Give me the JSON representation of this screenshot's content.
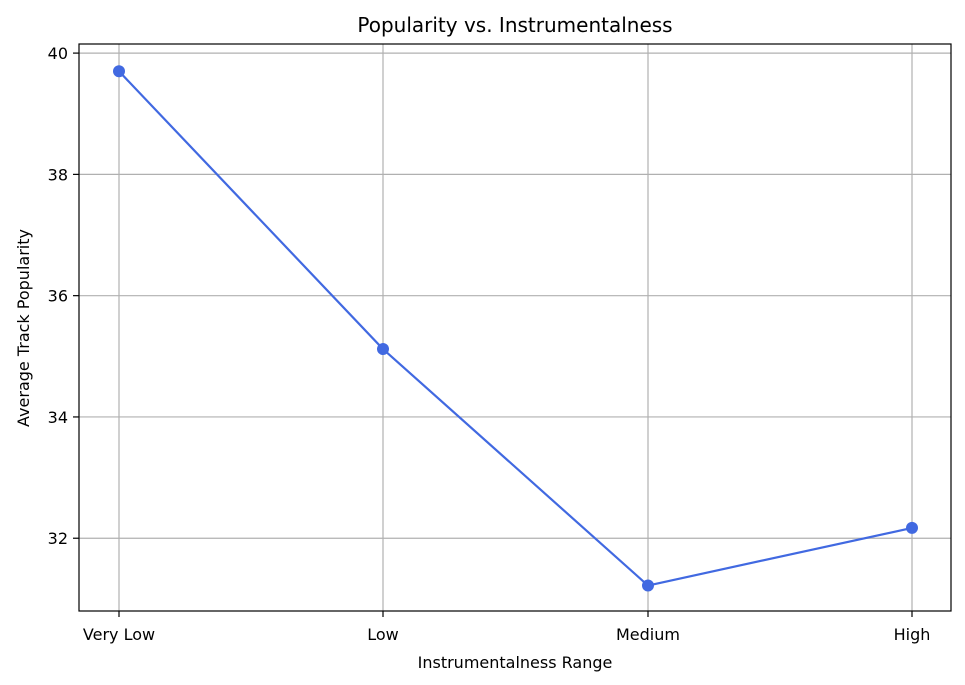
{
  "chart_data": {
    "type": "line",
    "title": "Popularity vs. Instrumentalness",
    "xlabel": "Instrumentalness Range",
    "ylabel": "Average Track Popularity",
    "categories": [
      "Very Low",
      "Low",
      "Medium",
      "High"
    ],
    "series": [
      {
        "values": [
          39.7,
          35.12,
          31.22,
          32.17
        ],
        "color": "#4169e1",
        "marker": "circle"
      }
    ],
    "ylim": [
      30.8,
      40.15
    ],
    "yticks": [
      32,
      34,
      36,
      38,
      40
    ],
    "grid": true,
    "legend": "none"
  }
}
